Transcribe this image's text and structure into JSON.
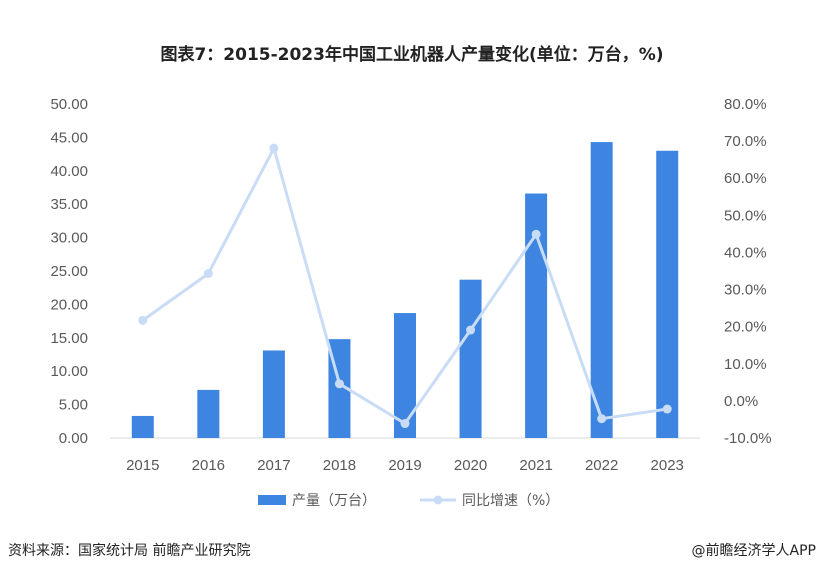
{
  "title": "图表7：2015-2023年中国工业机器人产量变化(单位：万台，%)",
  "footer": {
    "source": "资料来源：国家统计局 前瞻产业研究院",
    "brand": "@前瞻经济学人APP"
  },
  "colors": {
    "bar": "#3d85e0",
    "line": "#c9dcf5",
    "axis": "#d9d9d9"
  },
  "chart_data": {
    "type": "bar",
    "categories": [
      "2015",
      "2016",
      "2017",
      "2018",
      "2019",
      "2020",
      "2021",
      "2022",
      "2023"
    ],
    "series": [
      {
        "name": "产量（万台）",
        "type": "bar",
        "axis": "left",
        "values": [
          3.3,
          7.2,
          13.1,
          14.8,
          18.7,
          23.7,
          36.6,
          44.3,
          43.0
        ]
      },
      {
        "name": "同比增速（%）",
        "type": "line",
        "axis": "right",
        "values": [
          21.7,
          34.3,
          68.1,
          4.6,
          -6.1,
          19.1,
          44.9,
          -4.8,
          -2.2
        ]
      }
    ],
    "ylim_left": [
      0,
      50
    ],
    "ylim_right": [
      -10,
      80
    ],
    "yticks_left": [
      "50.00",
      "45.00",
      "40.00",
      "35.00",
      "30.00",
      "25.00",
      "20.00",
      "15.00",
      "10.00",
      "5.00",
      "0.00"
    ],
    "yticks_right": [
      "80.0%",
      "70.0%",
      "60.0%",
      "50.0%",
      "40.0%",
      "30.0%",
      "20.0%",
      "10.0%",
      "0.0%",
      "-10.0%"
    ],
    "legend_position": "bottom"
  }
}
